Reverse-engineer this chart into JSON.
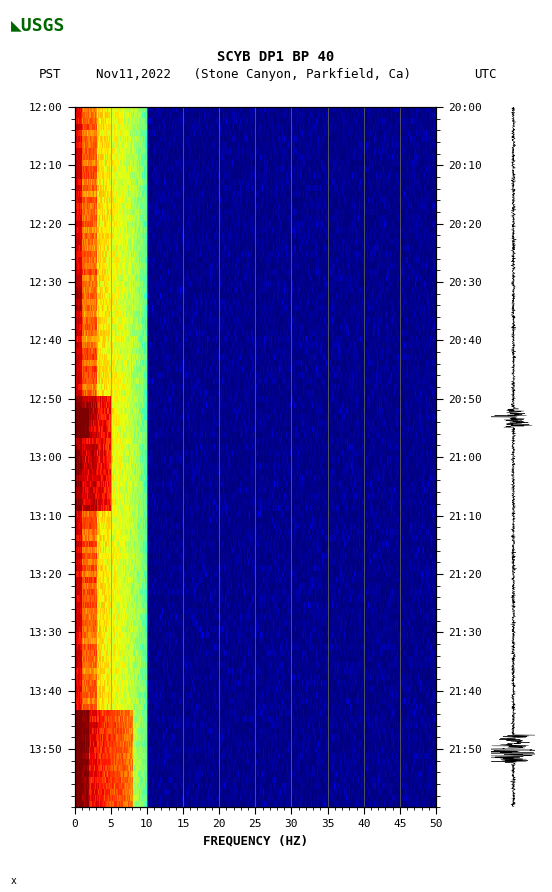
{
  "title_line1": "SCYB DP1 BP 40",
  "title_line2_left": "PST",
  "title_line2_mid": "Nov11,2022   (Stone Canyon, Parkfield, Ca)",
  "title_line2_right": "UTC",
  "xlabel": "FREQUENCY (HZ)",
  "freq_min": 0,
  "freq_max": 50,
  "ytick_pst": [
    "12:00",
    "12:10",
    "12:20",
    "12:30",
    "12:40",
    "12:50",
    "13:00",
    "13:10",
    "13:20",
    "13:30",
    "13:40",
    "13:50"
  ],
  "ytick_utc": [
    "20:00",
    "20:10",
    "20:20",
    "20:30",
    "20:40",
    "20:50",
    "21:00",
    "21:10",
    "21:20",
    "21:30",
    "21:40",
    "21:50"
  ],
  "xticks": [
    0,
    5,
    10,
    15,
    20,
    25,
    30,
    35,
    40,
    45,
    50
  ],
  "vertical_lines_freq": [
    5,
    10,
    15,
    20,
    25,
    30,
    35,
    40,
    45
  ],
  "fig_width": 5.52,
  "fig_height": 8.92,
  "n_time": 116,
  "n_freq": 500,
  "dark_blue": "#000080",
  "vline_color": "#888840",
  "vline_alpha": 0.7,
  "usgs_color": "#006600"
}
